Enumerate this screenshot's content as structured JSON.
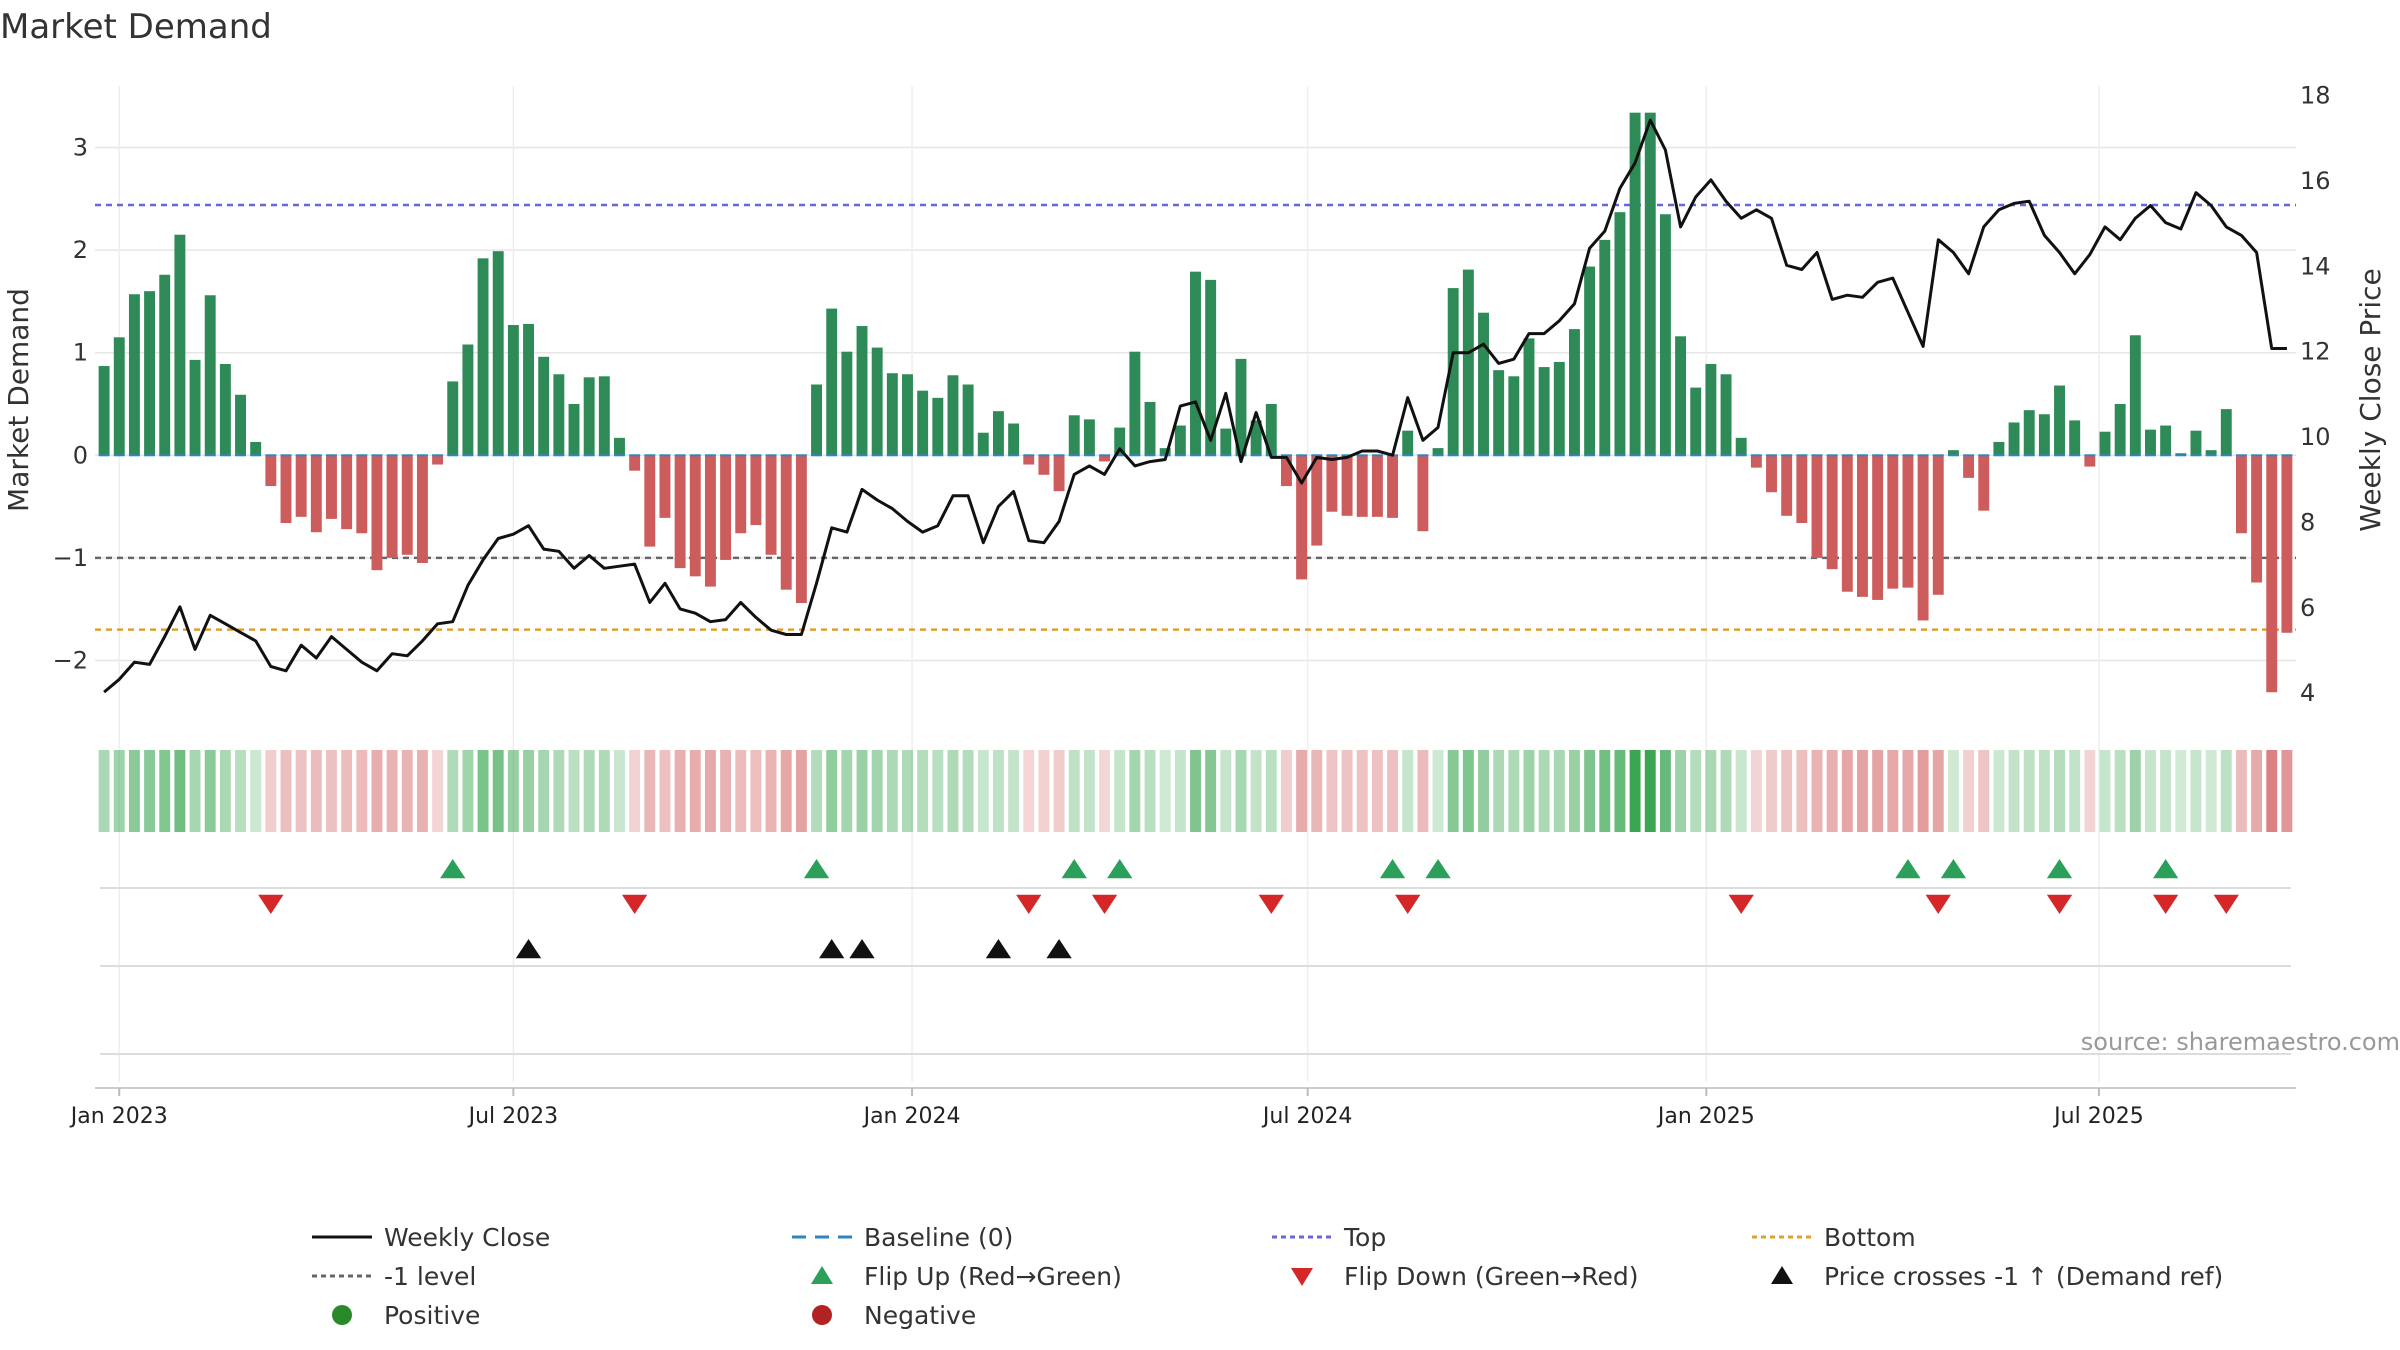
{
  "chart_data": {
    "type": "bar",
    "title": "Market Demand",
    "ylabel_left": "Market Demand",
    "ylabel_right": "Weekly Close Price",
    "y_left_range": [
      -2.6,
      3.6
    ],
    "y_left_ticks": [
      -2,
      -1,
      0,
      1,
      2,
      3
    ],
    "y_left_tick_labels": [
      "−2",
      "−1",
      "0",
      "1",
      "2",
      "3"
    ],
    "y_right_range": [
      3.3,
      18.2
    ],
    "y_right_ticks": [
      4,
      6,
      8,
      10,
      12,
      14,
      16,
      18
    ],
    "y_right_tick_labels": [
      "4",
      "6",
      "8",
      "10",
      "12",
      "14",
      "16",
      "18"
    ],
    "x_range_weeks": [
      -1.6,
      143.6
    ],
    "x_ticks": [
      {
        "label": "Jan 2023",
        "week": 0
      },
      {
        "label": "Jul 2023",
        "week": 26
      },
      {
        "label": "Jan 2024",
        "week": 52.3
      },
      {
        "label": "Jul 2024",
        "week": 78.4
      },
      {
        "label": "Jan 2025",
        "week": 104.7
      },
      {
        "label": "Jul 2025",
        "week": 130.6
      }
    ],
    "reference_lines": {
      "top": 2.44,
      "bottom": -1.7,
      "minus_one_level": -1.0,
      "baseline": 0
    },
    "series": [
      {
        "name": "Market Demand",
        "kind": "bar",
        "start_week": -1,
        "values": [
          0.87,
          1.15,
          1.57,
          1.6,
          1.76,
          2.15,
          0.93,
          1.56,
          0.89,
          0.59,
          0.13,
          -0.3,
          -0.66,
          -0.6,
          -0.75,
          -0.62,
          -0.72,
          -0.76,
          -1.12,
          -1.0,
          -0.97,
          -1.05,
          -0.09,
          0.72,
          1.08,
          1.92,
          1.99,
          1.27,
          1.28,
          0.96,
          0.79,
          0.5,
          0.76,
          0.77,
          0.17,
          -0.15,
          -0.89,
          -0.61,
          -1.1,
          -1.18,
          -1.28,
          -1.02,
          -0.76,
          -0.68,
          -0.97,
          -1.31,
          -1.44,
          0.69,
          1.43,
          1.01,
          1.26,
          1.05,
          0.8,
          0.79,
          0.63,
          0.56,
          0.78,
          0.69,
          0.22,
          0.43,
          0.31,
          -0.09,
          -0.19,
          -0.35,
          0.39,
          0.35,
          -0.06,
          0.27,
          1.01,
          0.52,
          0.07,
          0.29,
          1.79,
          1.71,
          0.26,
          0.94,
          0.34,
          0.5,
          -0.3,
          -1.21,
          -0.88,
          -0.55,
          -0.59,
          -0.6,
          -0.6,
          -0.61,
          0.24,
          -0.74,
          0.07,
          1.63,
          1.81,
          1.39,
          0.83,
          0.77,
          1.14,
          0.86,
          0.91,
          1.23,
          1.84,
          2.1,
          2.37,
          3.34,
          3.34,
          2.35,
          1.16,
          0.66,
          0.89,
          0.79,
          0.17,
          -0.12,
          -0.36,
          -0.59,
          -0.66,
          -1.0,
          -1.11,
          -1.33,
          -1.38,
          -1.41,
          -1.3,
          -1.29,
          -1.61,
          -1.36,
          0.05,
          -0.22,
          -0.54,
          0.13,
          0.32,
          0.44,
          0.4,
          0.68,
          0.34,
          -0.11,
          0.23,
          0.5,
          1.17,
          0.25,
          0.29,
          0.02,
          0.24,
          0.05,
          0.45,
          -0.76,
          -1.24,
          -2.31,
          -1.73
        ]
      },
      {
        "name": "Weekly Close",
        "kind": "line",
        "start_week": -1,
        "axis": "right",
        "values": [
          4.0,
          4.3,
          4.7,
          4.65,
          5.3,
          6.0,
          5.0,
          5.8,
          5.6,
          5.4,
          5.2,
          4.6,
          4.5,
          5.1,
          4.8,
          5.3,
          5.0,
          4.7,
          4.5,
          4.9,
          4.85,
          5.2,
          5.6,
          5.65,
          6.5,
          7.1,
          7.6,
          7.7,
          7.9,
          7.35,
          7.3,
          6.9,
          7.2,
          6.9,
          6.95,
          7.0,
          6.1,
          6.55,
          5.95,
          5.85,
          5.65,
          5.7,
          6.1,
          5.75,
          5.45,
          5.35,
          5.35,
          6.55,
          7.85,
          7.75,
          8.75,
          8.5,
          8.3,
          8.0,
          7.75,
          7.9,
          8.6,
          8.6,
          7.5,
          8.35,
          8.7,
          7.55,
          7.5,
          8.0,
          9.1,
          9.3,
          9.1,
          9.7,
          9.3,
          9.4,
          9.45,
          10.7,
          10.8,
          9.9,
          11.0,
          9.4,
          10.55,
          9.5,
          9.5,
          8.9,
          9.5,
          9.45,
          9.5,
          9.65,
          9.65,
          9.55,
          10.9,
          9.9,
          10.2,
          11.95,
          11.95,
          12.15,
          11.7,
          11.8,
          12.4,
          12.4,
          12.7,
          13.1,
          14.4,
          14.8,
          15.8,
          16.4,
          17.4,
          16.7,
          14.9,
          15.6,
          16.0,
          15.5,
          15.1,
          15.3,
          15.1,
          14.0,
          13.9,
          14.3,
          13.2,
          13.3,
          13.25,
          13.6,
          13.7,
          12.9,
          12.1,
          14.6,
          14.3,
          13.8,
          14.9,
          15.3,
          15.45,
          15.5,
          14.7,
          14.3,
          13.8,
          14.25,
          14.9,
          14.6,
          15.1,
          15.4,
          15.0,
          14.85,
          15.7,
          15.4,
          14.9,
          14.7,
          14.3,
          12.05,
          12.05
        ]
      }
    ],
    "heatmap_strip": {
      "description_legend": [
        "Positive",
        "Negative"
      ],
      "intensity_source": "Market Demand"
    },
    "events": {
      "flip_up_weeks": [
        22,
        46,
        63,
        66,
        84,
        87,
        118,
        121,
        128,
        135
      ],
      "flip_down_weeks": [
        10,
        34,
        60,
        65,
        76,
        85,
        107,
        120,
        128,
        135,
        139
      ],
      "price_cross_weeks": [
        27,
        47,
        49,
        58,
        62
      ]
    },
    "source": "source: sharemaestro.com",
    "legend": [
      {
        "label": "Weekly Close",
        "symbol": "line-solid",
        "color": "#111111"
      },
      {
        "label": "Baseline (0)",
        "symbol": "line-dashed",
        "color": "#2e86c1"
      },
      {
        "label": "Top",
        "symbol": "line-dotted",
        "color": "#6666dd"
      },
      {
        "label": "Bottom",
        "symbol": "line-dotted",
        "color": "#e0a030"
      },
      {
        "label": "-1 level",
        "symbol": "line-dotted",
        "color": "#666666"
      },
      {
        "label": "Flip Up (Red→Green)",
        "symbol": "triangle-up",
        "color": "#2ca05a"
      },
      {
        "label": "Flip Down (Green→Red)",
        "symbol": "triangle-down",
        "color": "#d62728"
      },
      {
        "label": "Price crosses -1 ↑ (Demand ref)",
        "symbol": "triangle-up",
        "color": "#111111"
      },
      {
        "label": "Positive",
        "symbol": "circle",
        "color": "#2a8a2a"
      },
      {
        "label": "Negative",
        "symbol": "circle",
        "color": "#b22222"
      }
    ],
    "colors": {
      "positive_bar": "#2e8b57",
      "negative_bar": "#cd5c5c",
      "flip_up": "#2ca05a",
      "flip_down": "#d62728",
      "price_cross": "#111111",
      "grid": "#e6e6e6",
      "axis_text": "#333333",
      "source_text": "#999999"
    }
  }
}
